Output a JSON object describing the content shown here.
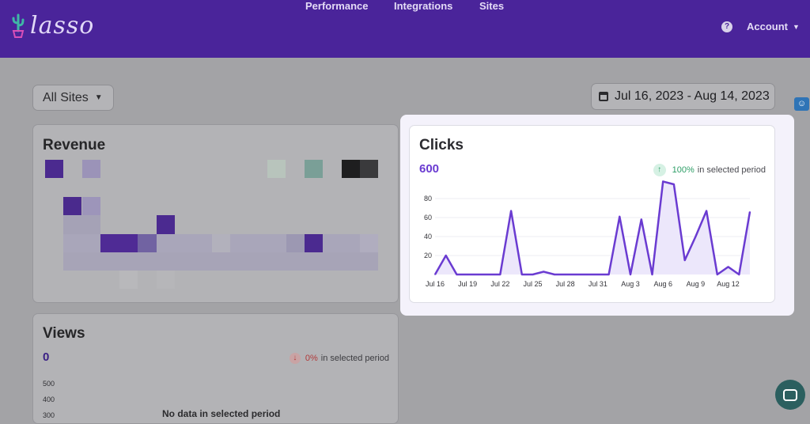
{
  "app": {
    "name": "lasso"
  },
  "nav": {
    "performance": "Performance",
    "integrations": "Integrations",
    "sites": "Sites"
  },
  "account": {
    "label": "Account",
    "help_icon": "?"
  },
  "site_selector": {
    "value": "All Sites"
  },
  "date_range": {
    "value": "Jul 16, 2023 - Aug 14, 2023"
  },
  "revenue": {
    "title": "Revenue"
  },
  "views": {
    "title": "Views",
    "value": "0",
    "change_pct": "0%",
    "change_text": "in selected period",
    "y_ticks": [
      "500",
      "400",
      "300"
    ],
    "empty_message": "No data in selected period"
  },
  "clicks": {
    "title": "Clicks",
    "value": "600",
    "change_pct": "100%",
    "change_text": "in selected period"
  },
  "colors": {
    "accent": "#6a3bd1",
    "nav_bg": "#4a249a",
    "positive": "#2e9e67",
    "negative": "#b23a3a"
  },
  "chart_data": {
    "type": "area",
    "x": [
      "Jul 16",
      "Jul 17",
      "Jul 18",
      "Jul 19",
      "Jul 20",
      "Jul 21",
      "Jul 22",
      "Jul 23",
      "Jul 24",
      "Jul 25",
      "Jul 26",
      "Jul 27",
      "Jul 28",
      "Jul 29",
      "Jul 30",
      "Jul 31",
      "Aug 1",
      "Aug 2",
      "Aug 3",
      "Aug 4",
      "Aug 5",
      "Aug 6",
      "Aug 7",
      "Aug 8",
      "Aug 9",
      "Aug 10",
      "Aug 11",
      "Aug 12",
      "Aug 13",
      "Aug 14"
    ],
    "series": [
      {
        "values": [
          0,
          20,
          0,
          0,
          0,
          0,
          0,
          67,
          0,
          0,
          3,
          0,
          0,
          0,
          0,
          0,
          0,
          61,
          0,
          58,
          0,
          98,
          95,
          15,
          40,
          67,
          0,
          8,
          0,
          66
        ]
      }
    ],
    "x_tick_labels": [
      "Jul 16",
      "Jul 19",
      "Jul 22",
      "Jul 25",
      "Jul 28",
      "Jul 31",
      "Aug 3",
      "Aug 6",
      "Aug 9",
      "Aug 12"
    ],
    "y_ticks": [
      20,
      40,
      60,
      80
    ],
    "ylim": [
      0,
      100
    ],
    "grid": true
  }
}
